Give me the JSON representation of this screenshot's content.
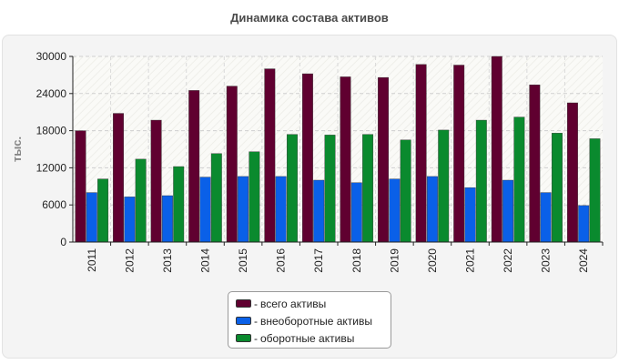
{
  "chart_data": {
    "type": "bar",
    "title": "Динамика состава активов",
    "ylabel": "тыс.",
    "xlabel": "",
    "ylim": [
      0,
      30000
    ],
    "yticks": [
      0,
      6000,
      12000,
      18000,
      24000,
      30000
    ],
    "categories": [
      "2011",
      "2012",
      "2013",
      "2014",
      "2015",
      "2016",
      "2017",
      "2018",
      "2019",
      "2020",
      "2021",
      "2022",
      "2023",
      "2024"
    ],
    "series": [
      {
        "name": "всего активы",
        "color": "#600030",
        "values": [
          18000,
          20800,
          19700,
          24500,
          25200,
          28000,
          27200,
          26700,
          26600,
          28700,
          28600,
          30000,
          25400,
          22500
        ]
      },
      {
        "name": "внеоборотные активы",
        "color": "#0a60e8",
        "values": [
          8000,
          7300,
          7500,
          10500,
          10600,
          10600,
          10000,
          9600,
          10200,
          10600,
          8800,
          10000,
          8000,
          5900
        ]
      },
      {
        "name": "оборотные активы",
        "color": "#0a8a2e",
        "values": [
          10200,
          13400,
          12200,
          14300,
          14600,
          17400,
          17300,
          17400,
          16500,
          18100,
          19700,
          20200,
          17600,
          16700
        ]
      }
    ],
    "grid": true,
    "legend_position": "bottom"
  }
}
